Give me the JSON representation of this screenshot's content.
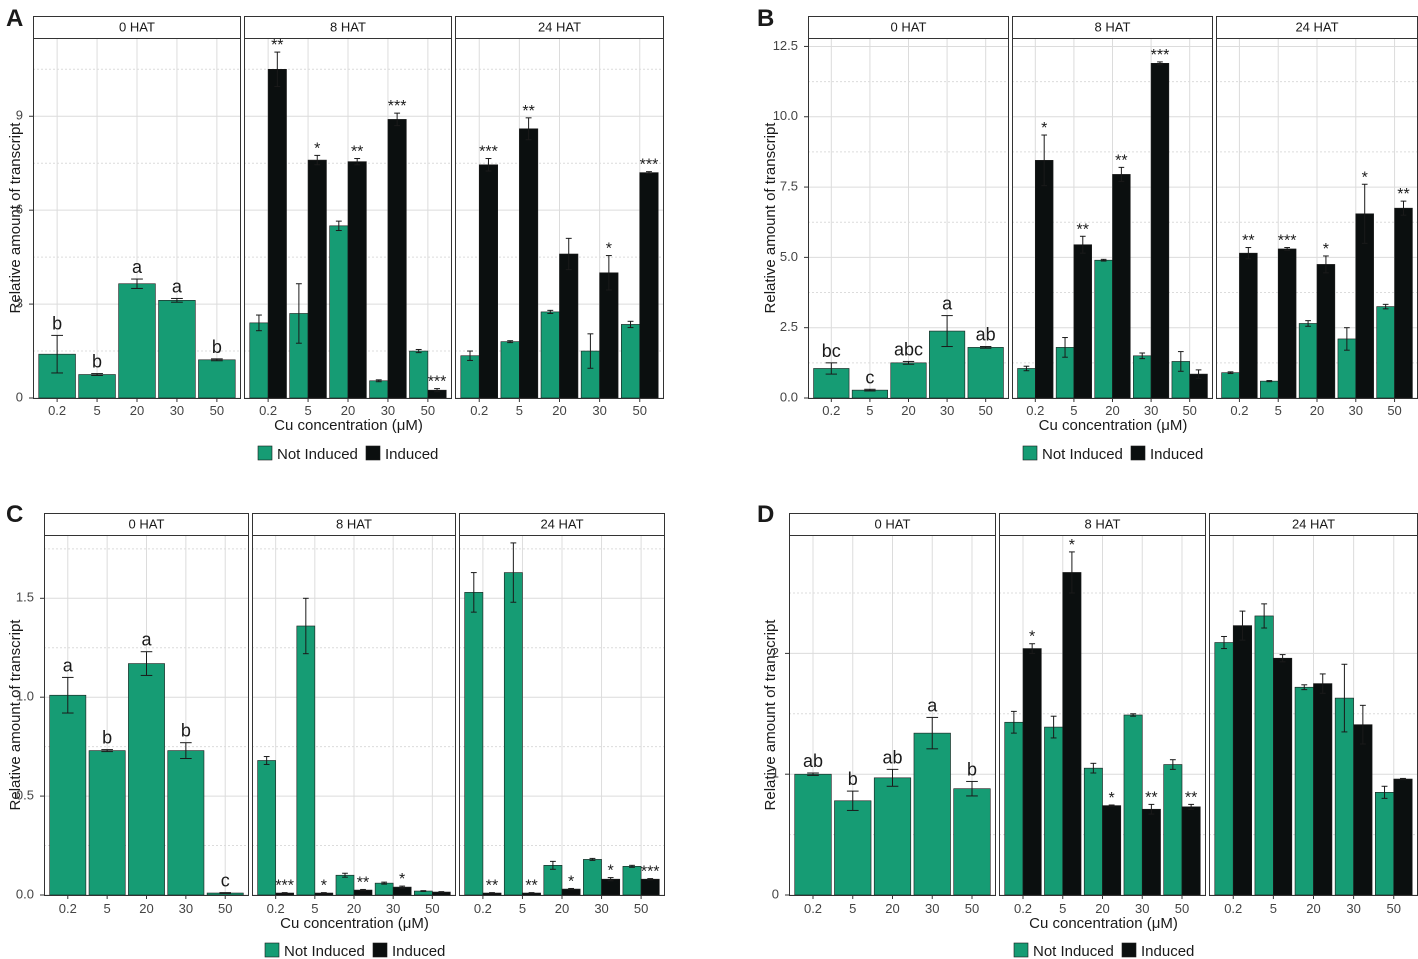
{
  "figure": {
    "colors": {
      "not_induced": "#169c74",
      "induced": "#0b0f0f",
      "grid": "#dcdcdc",
      "frame": "#333333",
      "strip_fill": "#ffffff",
      "text": "#1a1a1a"
    }
  },
  "chart_data": [
    {
      "panel_letter": "A",
      "type": "bar",
      "ylabel": "Relative amount of transcript",
      "xlabel": "Cu concentration (μM)",
      "categories": [
        "0.2",
        "5",
        "20",
        "30",
        "50"
      ],
      "ylim": [
        0,
        11.5
      ],
      "yticks": [
        0,
        3,
        6,
        9
      ],
      "ytick_labels": [
        "0",
        "3",
        "6",
        "9"
      ],
      "legend": [
        "Not Induced",
        "Induced"
      ],
      "facets": [
        {
          "title": "0 HAT",
          "single": true,
          "not_induced": [
            1.4,
            0.75,
            3.65,
            3.12,
            1.22
          ],
          "ni_err": [
            0.6,
            0.03,
            0.15,
            0.06,
            0.03
          ],
          "ni_ann": [
            "b",
            "b",
            "a",
            "a",
            "b"
          ]
        },
        {
          "title": "8 HAT",
          "single": false,
          "not_induced": [
            2.4,
            2.7,
            5.5,
            0.55,
            1.5
          ],
          "ni_err": [
            0.25,
            0.95,
            0.15,
            0.03,
            0.05
          ],
          "induced": [
            10.5,
            7.6,
            7.55,
            8.9,
            0.25
          ],
          "ind_err": [
            0.55,
            0.15,
            0.1,
            0.2,
            0.05
          ],
          "ind_ann": [
            "**",
            "*",
            "**",
            "***",
            "***"
          ]
        },
        {
          "title": "24 HAT",
          "single": false,
          "not_induced": [
            1.35,
            1.8,
            2.75,
            1.5,
            2.35
          ],
          "ni_err": [
            0.15,
            0.03,
            0.05,
            0.55,
            0.1
          ],
          "induced": [
            7.45,
            8.6,
            4.6,
            4.0,
            7.2
          ],
          "ind_err": [
            0.2,
            0.35,
            0.5,
            0.55,
            0.03
          ],
          "ind_ann": [
            "***",
            "**",
            "",
            "*",
            "***"
          ]
        }
      ]
    },
    {
      "panel_letter": "B",
      "type": "bar",
      "ylabel": "Relative amount of transcript",
      "xlabel": "Cu concentration (μM)",
      "categories": [
        "0.2",
        "5",
        "20",
        "30",
        "50"
      ],
      "ylim": [
        0,
        12.8
      ],
      "yticks": [
        0,
        2.5,
        5,
        7.5,
        10,
        12.5
      ],
      "ytick_labels": [
        "0.0",
        "2.5",
        "5.0",
        "7.5",
        "10.0",
        "12.5"
      ],
      "legend": [
        "Not Induced",
        "Induced"
      ],
      "facets": [
        {
          "title": "0 HAT",
          "single": true,
          "not_induced": [
            1.05,
            0.28,
            1.25,
            2.38,
            1.8
          ],
          "ni_err": [
            0.2,
            0.03,
            0.05,
            0.55,
            0.03
          ],
          "ni_ann": [
            "bc",
            "c",
            "abc",
            "a",
            "ab"
          ]
        },
        {
          "title": "8 HAT",
          "single": false,
          "not_induced": [
            1.05,
            1.8,
            4.9,
            1.5,
            1.3
          ],
          "ni_err": [
            0.08,
            0.35,
            0.03,
            0.1,
            0.35
          ],
          "induced": [
            8.45,
            5.45,
            7.95,
            11.9,
            0.85
          ],
          "ind_err": [
            0.9,
            0.3,
            0.25,
            0.05,
            0.15
          ],
          "ind_ann": [
            "*",
            "**",
            "**",
            "***",
            ""
          ]
        },
        {
          "title": "24 HAT",
          "single": false,
          "not_induced": [
            0.9,
            0.6,
            2.65,
            2.1,
            3.25
          ],
          "ni_err": [
            0.03,
            0.02,
            0.1,
            0.4,
            0.08
          ],
          "induced": [
            5.15,
            5.3,
            4.75,
            6.55,
            6.75
          ],
          "ind_err": [
            0.2,
            0.05,
            0.3,
            1.05,
            0.25
          ],
          "ind_ann": [
            "**",
            "***",
            "*",
            "*",
            "**"
          ]
        }
      ]
    },
    {
      "panel_letter": "C",
      "type": "bar",
      "ylabel": "Relative amount of transcript",
      "xlabel": "Cu concentration (μM)",
      "categories": [
        "0.2",
        "5",
        "20",
        "30",
        "50"
      ],
      "ylim": [
        0,
        1.82
      ],
      "yticks": [
        0,
        0.5,
        1.0,
        1.5
      ],
      "ytick_labels": [
        "0.0",
        "0.5",
        "1.0",
        "1.5"
      ],
      "legend": [
        "Not Induced",
        "Induced"
      ],
      "facets": [
        {
          "title": "0 HAT",
          "single": true,
          "not_induced": [
            1.01,
            0.73,
            1.17,
            0.73,
            0.01
          ],
          "ni_err": [
            0.09,
            0.005,
            0.06,
            0.04,
            0.002
          ],
          "ni_ann": [
            "a",
            "b",
            "a",
            "b",
            "c"
          ]
        },
        {
          "title": "8 HAT",
          "single": false,
          "not_induced": [
            0.68,
            1.36,
            0.1,
            0.06,
            0.02
          ],
          "ni_err": [
            0.02,
            0.14,
            0.01,
            0.005,
            0.002
          ],
          "induced": [
            0.01,
            0.01,
            0.025,
            0.04,
            0.015
          ],
          "ind_err": [
            0.002,
            0.002,
            0.003,
            0.005,
            0.002
          ],
          "ind_ann": [
            "***",
            "*",
            "**",
            "*",
            ""
          ]
        },
        {
          "title": "24 HAT",
          "single": false,
          "not_induced": [
            1.53,
            1.63,
            0.15,
            0.18,
            0.145
          ],
          "ni_err": [
            0.1,
            0.15,
            0.02,
            0.005,
            0.005
          ],
          "induced": [
            0.01,
            0.01,
            0.03,
            0.08,
            0.08
          ],
          "ind_err": [
            0.002,
            0.002,
            0.003,
            0.008,
            0.003
          ],
          "ind_ann": [
            "**",
            "**",
            "*",
            "*",
            "***"
          ]
        }
      ]
    },
    {
      "panel_letter": "D",
      "type": "bar",
      "ylabel": "Relative amount of transcript",
      "xlabel": "Cu concentration (μM)",
      "categories": [
        "0.2",
        "5",
        "20",
        "30",
        "50"
      ],
      "ylim": [
        0,
        2.98
      ],
      "yticks": [
        0,
        1,
        2
      ],
      "ytick_labels": [
        "0",
        "1",
        "2"
      ],
      "legend": [
        "Not Induced",
        "Induced"
      ],
      "facets": [
        {
          "title": "0 HAT",
          "single": true,
          "not_induced": [
            1.0,
            0.78,
            0.97,
            1.34,
            0.88
          ],
          "ni_err": [
            0.01,
            0.08,
            0.07,
            0.13,
            0.06
          ],
          "ni_ann": [
            "ab",
            "b",
            "ab",
            "a",
            "b"
          ]
        },
        {
          "title": "8 HAT",
          "single": false,
          "not_induced": [
            1.43,
            1.39,
            1.05,
            1.49,
            1.08
          ],
          "ni_err": [
            0.09,
            0.09,
            0.04,
            0.01,
            0.04
          ],
          "induced": [
            2.04,
            2.67,
            0.74,
            0.71,
            0.73
          ],
          "ind_err": [
            0.04,
            0.17,
            0.005,
            0.04,
            0.02
          ],
          "ind_ann": [
            "*",
            "*",
            "*",
            "**",
            "**"
          ]
        },
        {
          "title": "24 HAT",
          "single": false,
          "not_induced": [
            2.09,
            2.31,
            1.72,
            1.63,
            0.85
          ],
          "ni_err": [
            0.05,
            0.1,
            0.02,
            0.28,
            0.05
          ],
          "induced": [
            2.23,
            1.96,
            1.75,
            1.41,
            0.96
          ],
          "ind_err": [
            0.12,
            0.03,
            0.08,
            0.16,
            0.005
          ],
          "ind_ann": [
            "",
            "",
            "",
            "",
            ""
          ]
        }
      ]
    }
  ]
}
